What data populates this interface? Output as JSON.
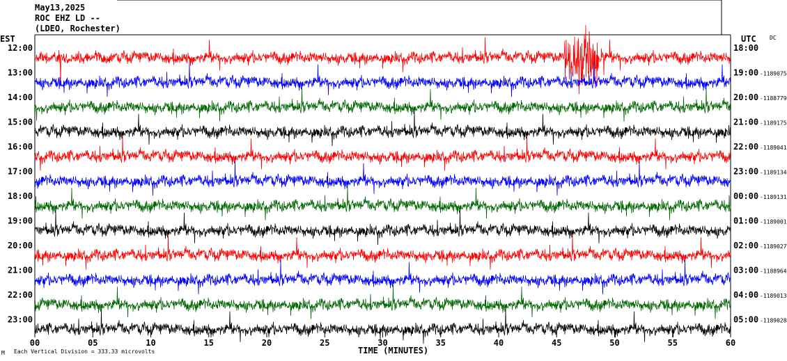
{
  "header": {
    "date": "May13,2025",
    "station": "ROC EHZ LD --",
    "network": "(LDEO, Rochester)"
  },
  "chart_data": {
    "type": "line",
    "subtype": "helicorder",
    "left_axis_label": "EST",
    "right_axis_label": "UTC",
    "filter_label": "DC",
    "xlabel": "TIME (MINUTES)",
    "xlim": [
      0,
      60
    ],
    "x_ticks": [
      "00",
      "05",
      "10",
      "15",
      "20",
      "25",
      "30",
      "35",
      "40",
      "45",
      "50",
      "55",
      "60"
    ],
    "trace_colors": [
      "#ff0000",
      "#0000ff",
      "#006600",
      "#000000"
    ],
    "rows": [
      {
        "est": "12:00",
        "utc": "18:00",
        "offset": ""
      },
      {
        "est": "13:00",
        "utc": "19:00",
        "offset": "-1189075"
      },
      {
        "est": "14:00",
        "utc": "20:00",
        "offset": "-1188779"
      },
      {
        "est": "15:00",
        "utc": "21:00",
        "offset": "-1189175"
      },
      {
        "est": "16:00",
        "utc": "22:00",
        "offset": "-1189041"
      },
      {
        "est": "17:00",
        "utc": "23:00",
        "offset": "-1189134"
      },
      {
        "est": "18:00",
        "utc": "00:00",
        "offset": "-1189131"
      },
      {
        "est": "19:00",
        "utc": "01:00",
        "offset": "-1189001"
      },
      {
        "est": "20:00",
        "utc": "02:00",
        "offset": "-1189027"
      },
      {
        "est": "21:00",
        "utc": "03:00",
        "offset": "-1188964"
      },
      {
        "est": "22:00",
        "utc": "04:00",
        "offset": "-1189013"
      },
      {
        "est": "23:00",
        "utc": "05:00",
        "offset": "-1189028"
      }
    ],
    "footnote": "Each Vertical Division =  333.33 microvolts",
    "footnote_mark": "M"
  }
}
